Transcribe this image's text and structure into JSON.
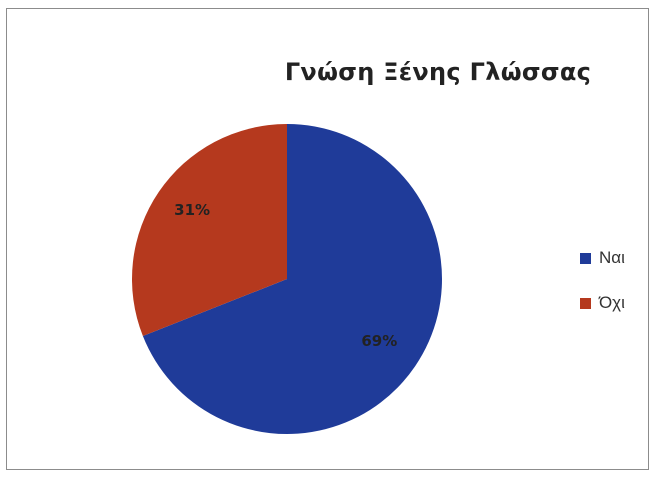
{
  "chart_data": {
    "type": "pie",
    "title": "Γνώση Ξένης Γλώσσας",
    "slices": [
      {
        "label": "Ναι",
        "value": 69,
        "value_label": "69%",
        "color": "#1f3b99"
      },
      {
        "label": "Όχι",
        "value": 31,
        "value_label": "31%",
        "color": "#b5391e"
      }
    ],
    "legend_position": "right"
  }
}
